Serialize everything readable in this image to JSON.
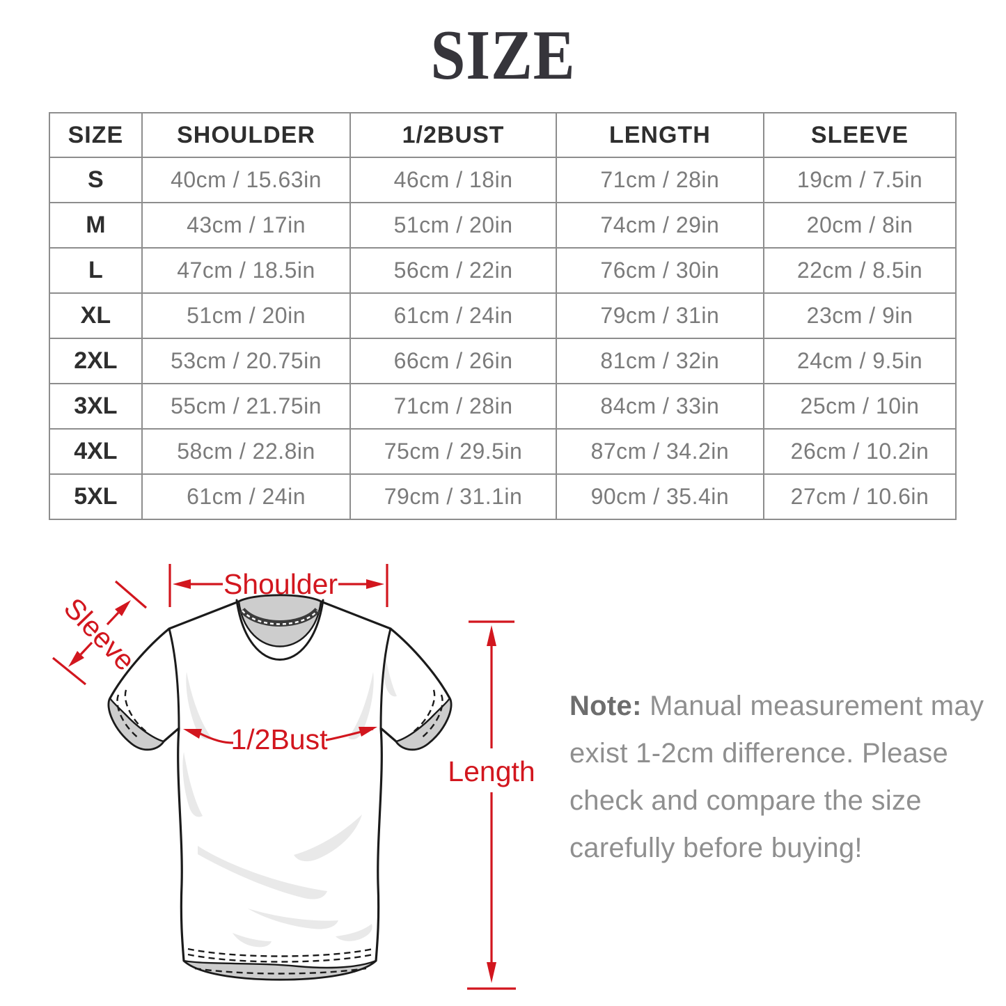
{
  "title": "SIZE",
  "table": {
    "columns": [
      "size",
      "shoulder",
      "bust",
      "length",
      "sleeve"
    ],
    "headers": [
      "SIZE",
      "SHOULDER",
      "1/2BUST",
      "LENGTH",
      "SLEEVE"
    ],
    "rows": [
      {
        "size": "S",
        "shoulder": "40cm / 15.63in",
        "bust": "46cm / 18in",
        "length": "71cm / 28in",
        "sleeve": "19cm / 7.5in"
      },
      {
        "size": "M",
        "shoulder": "43cm / 17in",
        "bust": "51cm / 20in",
        "length": "74cm / 29in",
        "sleeve": "20cm / 8in"
      },
      {
        "size": "L",
        "shoulder": "47cm / 18.5in",
        "bust": "56cm / 22in",
        "length": "76cm / 30in",
        "sleeve": "22cm / 8.5in"
      },
      {
        "size": "XL",
        "shoulder": "51cm / 20in",
        "bust": "61cm / 24in",
        "length": "79cm / 31in",
        "sleeve": "23cm / 9in"
      },
      {
        "size": "2XL",
        "shoulder": "53cm / 20.75in",
        "bust": "66cm / 26in",
        "length": "81cm / 32in",
        "sleeve": "24cm / 9.5in"
      },
      {
        "size": "3XL",
        "shoulder": "55cm / 21.75in",
        "bust": "71cm / 28in",
        "length": "84cm / 33in",
        "sleeve": "25cm / 10in"
      },
      {
        "size": "4XL",
        "shoulder": "58cm / 22.8in",
        "bust": "75cm / 29.5in",
        "length": "87cm / 34.2in",
        "sleeve": "26cm / 10.2in"
      },
      {
        "size": "5XL",
        "shoulder": "61cm / 24in",
        "bust": "79cm / 31.1in",
        "length": "90cm / 35.4in",
        "sleeve": "27cm / 10.6in"
      }
    ]
  },
  "diagram": {
    "labels": {
      "shoulder": "Shoulder",
      "sleeve": "Sleeve",
      "bust": "1/2Bust",
      "length": "Length"
    }
  },
  "note": {
    "bold": "Note:",
    "lines": [
      "Manual measurement may",
      "exist 1-2cm difference. Please",
      "check and compare the size",
      "carefully before buying!"
    ]
  },
  "colors": {
    "annotation_red": "#d2161e",
    "table_border": "#8d8d8d",
    "header_text": "#2e2e2e",
    "value_text": "#7b7b7b",
    "note_text": "#8f8f8f",
    "note_bold": "#6d6d6d",
    "title_text": "#36353b",
    "shirt_outline": "#1b1b1b",
    "shirt_gray": "#cdcdcd",
    "wrinkle_gray": "#e9e9e9"
  }
}
